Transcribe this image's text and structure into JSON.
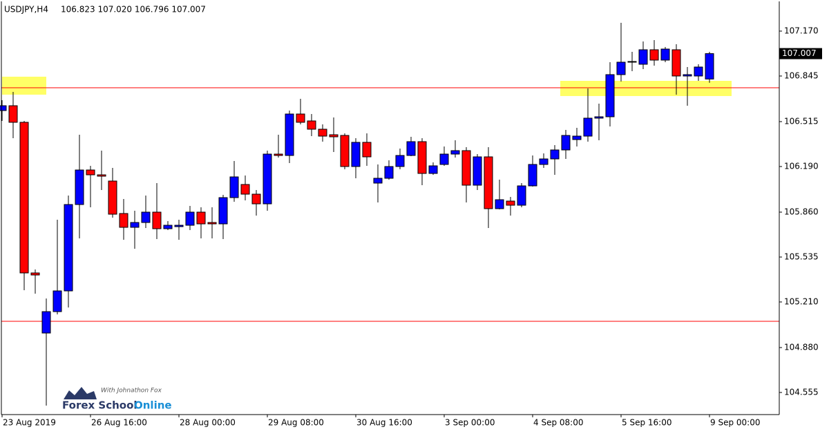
{
  "chart_data": {
    "type": "candlestick",
    "title": "USDJPY,H4",
    "subtitle": "106.823 107.020 106.796 107.007",
    "categories": [
      "23 Aug 2019",
      null,
      null,
      null,
      null,
      null,
      null,
      null,
      "26 Aug 16:00",
      null,
      null,
      null,
      null,
      null,
      null,
      null,
      "28 Aug 00:00",
      null,
      null,
      null,
      null,
      null,
      null,
      null,
      "29 Aug 08:00",
      null,
      null,
      null,
      null,
      null,
      null,
      null,
      "30 Aug 16:00",
      null,
      null,
      null,
      null,
      null,
      null,
      null,
      "3 Sep 00:00",
      null,
      null,
      null,
      null,
      null,
      null,
      null,
      "4 Sep 08:00",
      null,
      null,
      null,
      null,
      null,
      null,
      null,
      "5 Sep 16:00",
      null,
      null,
      null,
      null,
      null,
      null,
      null,
      "9 Sep 00:00"
    ],
    "open": [
      106.595,
      106.63,
      106.51,
      105.42,
      104.985,
      105.14,
      105.29,
      105.915,
      106.165,
      106.13,
      106.085,
      105.85,
      105.75,
      105.785,
      105.86,
      105.74,
      105.755,
      105.765,
      105.86,
      105.785,
      105.775,
      105.965,
      106.06,
      105.99,
      105.92,
      106.28,
      106.27,
      106.57,
      106.52,
      106.46,
      106.42,
      106.415,
      106.19,
      106.365,
      106.07,
      106.105,
      106.19,
      106.27,
      106.37,
      106.14,
      106.205,
      106.28,
      106.305,
      106.055,
      106.26,
      105.885,
      105.94,
      105.91,
      106.05,
      106.205,
      106.245,
      106.31,
      106.385,
      106.41,
      106.54,
      106.55,
      106.855,
      106.945,
      106.93,
      107.035,
      106.96,
      107.035,
      106.845,
      106.845,
      106.823
    ],
    "high": [
      106.67,
      106.73,
      106.52,
      105.445,
      105.235,
      105.805,
      105.98,
      106.42,
      106.195,
      106.305,
      106.18,
      105.955,
      105.87,
      105.98,
      106.07,
      105.795,
      105.805,
      105.905,
      105.895,
      105.895,
      105.985,
      106.23,
      106.125,
      106.02,
      106.305,
      106.42,
      106.595,
      106.68,
      106.57,
      106.495,
      106.545,
      106.43,
      106.395,
      106.43,
      106.205,
      106.235,
      106.32,
      106.405,
      106.395,
      106.22,
      106.335,
      106.38,
      106.33,
      106.28,
      106.33,
      106.095,
      105.97,
      106.07,
      106.27,
      106.285,
      106.345,
      106.455,
      106.47,
      106.755,
      106.645,
      106.945,
      107.23,
      107.02,
      107.095,
      107.105,
      107.055,
      107.075,
      106.91,
      106.93,
      107.02
    ],
    "low": [
      106.52,
      106.395,
      105.295,
      105.27,
      104.46,
      105.12,
      105.17,
      105.67,
      105.895,
      106.02,
      105.82,
      105.66,
      105.595,
      105.745,
      105.665,
      105.73,
      105.66,
      105.73,
      105.67,
      105.67,
      105.665,
      105.935,
      105.945,
      105.835,
      105.87,
      106.255,
      106.215,
      106.495,
      106.41,
      106.37,
      106.295,
      106.17,
      106.105,
      106.195,
      105.93,
      106.095,
      106.17,
      106.265,
      106.055,
      106.13,
      106.195,
      106.255,
      105.93,
      106.02,
      105.745,
      105.88,
      105.835,
      105.895,
      106.045,
      106.18,
      106.13,
      106.245,
      106.335,
      106.37,
      106.38,
      106.48,
      106.805,
      106.88,
      106.895,
      106.92,
      106.945,
      106.71,
      106.63,
      106.81,
      106.796
    ],
    "close": [
      106.63,
      106.51,
      105.42,
      105.405,
      105.14,
      105.29,
      105.915,
      106.165,
      106.13,
      106.12,
      105.845,
      105.75,
      105.785,
      105.86,
      105.74,
      105.765,
      105.765,
      105.86,
      105.775,
      105.775,
      105.965,
      106.115,
      105.99,
      105.92,
      106.28,
      106.27,
      106.57,
      106.51,
      106.46,
      106.41,
      106.405,
      106.19,
      106.365,
      106.26,
      106.105,
      106.19,
      106.27,
      106.37,
      106.14,
      106.195,
      106.28,
      106.305,
      106.055,
      106.26,
      105.885,
      105.95,
      105.91,
      106.05,
      106.205,
      106.245,
      106.31,
      106.415,
      106.41,
      106.54,
      106.55,
      106.855,
      106.945,
      106.95,
      107.035,
      106.96,
      107.04,
      106.845,
      106.855,
      106.91,
      107.007
    ],
    "up_color": "#0000ff",
    "down_color": "#ff0000",
    "ylim": [
      104.395,
      107.385
    ],
    "yticks": [
      {
        "value": 107.17,
        "label": "107.170"
      },
      106.845,
      106.515,
      {
        "value": 106.19,
        "label": "106.190"
      },
      {
        "value": 105.86,
        "label": "105.860"
      },
      105.535,
      {
        "value": 105.21,
        "label": "105.210"
      },
      {
        "value": 104.88,
        "label": "104.880"
      },
      104.555
    ],
    "last_price": 107.007,
    "levels": [
      106.76,
      105.07
    ],
    "level_color": "#ff0000",
    "zones": [
      {
        "from": 106.71,
        "to": 106.84,
        "start": 0,
        "end": 4
      },
      {
        "from": 106.7,
        "to": 106.81,
        "start": 50.5,
        "end": 66
      }
    ],
    "zone_color": "#ffff66",
    "watermark": {
      "tagline": "With Johnathon Fox",
      "brand": "Forex School",
      "brand_accent": "Online"
    }
  }
}
